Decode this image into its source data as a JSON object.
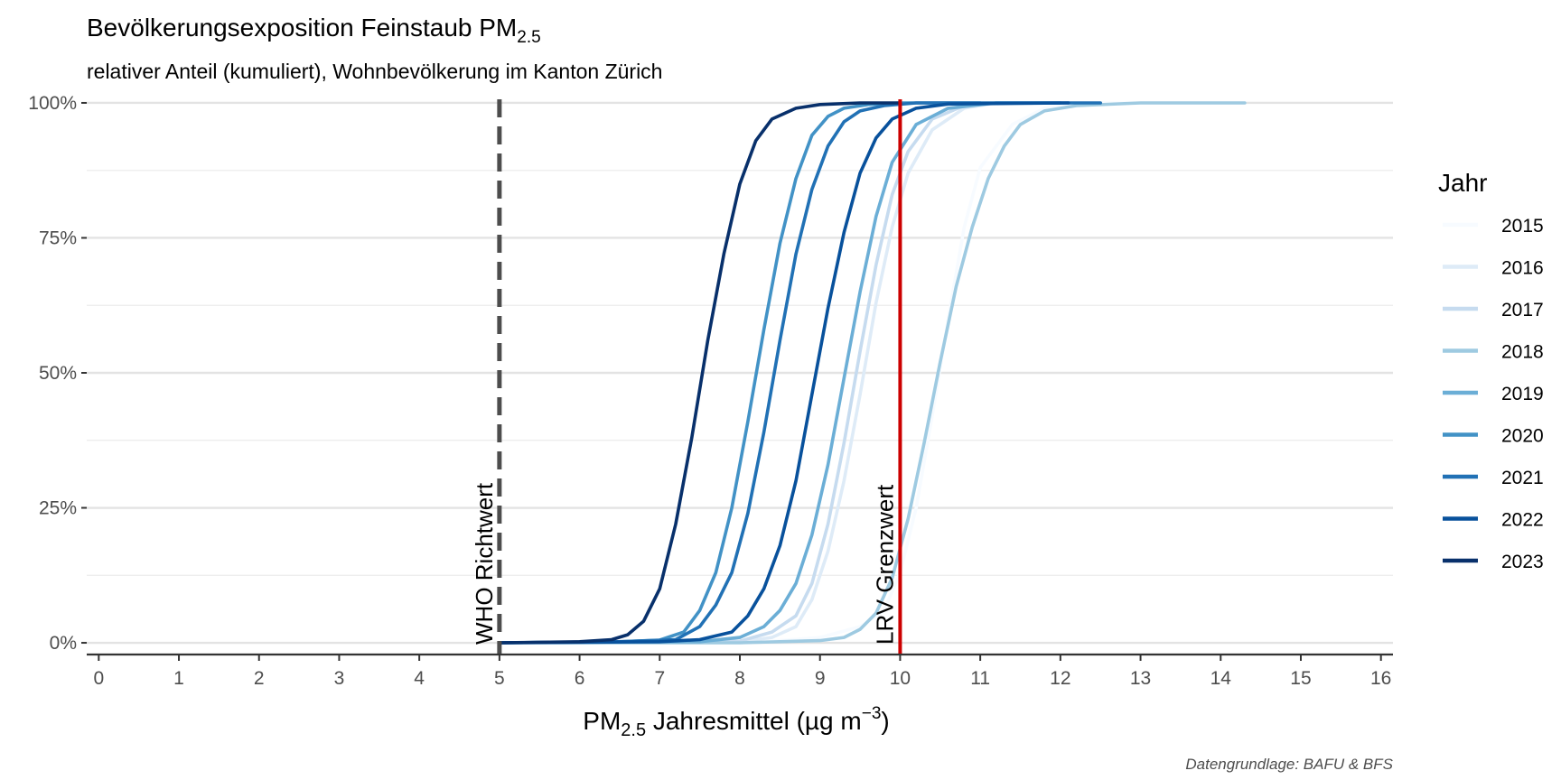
{
  "chart_data": {
    "type": "line",
    "title": {
      "main": "Bevölkerungsexposition Feinstaub PM",
      "sub": "2.5"
    },
    "subtitle": "relativer Anteil (kumuliert), Wohnbevölkerung im Kanton Zürich",
    "xlabel": {
      "pre": "PM",
      "sub": "2.5",
      "mid": " Jahresmittel (µg m",
      "sup": "−3",
      "post": ")"
    },
    "xlim": [
      -0.15,
      16.15
    ],
    "ylim": [
      -0.02,
      1.02
    ],
    "x_ticks": [
      0,
      1,
      2,
      3,
      4,
      5,
      6,
      7,
      8,
      9,
      10,
      11,
      12,
      13,
      14,
      15,
      16
    ],
    "y_ticks": [
      0,
      0.25,
      0.5,
      0.75,
      1.0
    ],
    "y_tick_labels": [
      "0%",
      "25%",
      "50%",
      "75%",
      "100%"
    ],
    "grid": true,
    "legend": {
      "title": "Jahr",
      "position": "right"
    },
    "reference_lines": [
      {
        "x": 5,
        "label": "WHO Richtwert",
        "style": "dashed",
        "color": "#4d4d4d"
      },
      {
        "x": 10,
        "label": "LRV Grenzwert",
        "style": "solid",
        "color": "#cc0000"
      }
    ],
    "series": [
      {
        "name": "2015",
        "color": "#f7fbff",
        "x": [
          5.0,
          8.0,
          8.5,
          9.0,
          9.5,
          9.8,
          10.0,
          10.2,
          10.4,
          10.6,
          10.8,
          11.0,
          11.4,
          11.8,
          12.5,
          14.3
        ],
        "y": [
          0.0,
          0.0,
          0.004,
          0.01,
          0.03,
          0.06,
          0.13,
          0.25,
          0.42,
          0.6,
          0.77,
          0.88,
          0.96,
          0.99,
          1.0,
          1.0
        ]
      },
      {
        "name": "2016",
        "color": "#deebf7",
        "x": [
          5.0,
          8.0,
          8.4,
          8.7,
          8.9,
          9.1,
          9.3,
          9.5,
          9.7,
          9.9,
          10.1,
          10.4,
          10.8,
          11.2,
          12.0
        ],
        "y": [
          0.0,
          0.002,
          0.01,
          0.03,
          0.08,
          0.17,
          0.3,
          0.46,
          0.63,
          0.77,
          0.87,
          0.95,
          0.99,
          1.0,
          1.0
        ]
      },
      {
        "name": "2017",
        "color": "#c6dbef",
        "x": [
          5.0,
          8.0,
          8.4,
          8.7,
          8.9,
          9.1,
          9.3,
          9.5,
          9.7,
          9.9,
          10.1,
          10.4,
          10.8,
          11.2,
          12.0
        ],
        "y": [
          0.0,
          0.003,
          0.02,
          0.05,
          0.11,
          0.22,
          0.37,
          0.54,
          0.7,
          0.83,
          0.91,
          0.97,
          0.995,
          1.0,
          1.0
        ]
      },
      {
        "name": "2018",
        "color": "#9ecae1",
        "x": [
          5.0,
          8.0,
          9.0,
          9.3,
          9.5,
          9.7,
          9.9,
          10.1,
          10.3,
          10.5,
          10.7,
          10.9,
          11.1,
          11.3,
          11.5,
          11.8,
          12.2,
          13.0,
          14.3
        ],
        "y": [
          0.0,
          0.0,
          0.004,
          0.01,
          0.025,
          0.055,
          0.12,
          0.23,
          0.37,
          0.52,
          0.66,
          0.77,
          0.86,
          0.92,
          0.96,
          0.985,
          0.995,
          1.0,
          1.0
        ]
      },
      {
        "name": "2019",
        "color": "#6baed6",
        "x": [
          5.0,
          7.5,
          8.0,
          8.3,
          8.5,
          8.7,
          8.9,
          9.1,
          9.3,
          9.5,
          9.7,
          9.9,
          10.2,
          10.6,
          11.2,
          12.0
        ],
        "y": [
          0.0,
          0.002,
          0.01,
          0.03,
          0.06,
          0.11,
          0.2,
          0.33,
          0.49,
          0.65,
          0.79,
          0.89,
          0.96,
          0.99,
          1.0,
          1.0
        ]
      },
      {
        "name": "2020",
        "color": "#4292c6",
        "x": [
          5.0,
          6.5,
          7.0,
          7.3,
          7.5,
          7.7,
          7.9,
          8.1,
          8.3,
          8.5,
          8.7,
          8.9,
          9.1,
          9.3,
          9.6,
          10.0,
          11.0
        ],
        "y": [
          0.0,
          0.002,
          0.005,
          0.02,
          0.06,
          0.13,
          0.25,
          0.41,
          0.58,
          0.74,
          0.86,
          0.94,
          0.975,
          0.99,
          0.997,
          1.0,
          1.0
        ]
      },
      {
        "name": "2021",
        "color": "#2171b5",
        "x": [
          5.0,
          6.5,
          7.2,
          7.5,
          7.7,
          7.9,
          8.1,
          8.3,
          8.5,
          8.7,
          8.9,
          9.1,
          9.3,
          9.5,
          9.8,
          10.2,
          12.5
        ],
        "y": [
          0.0,
          0.002,
          0.006,
          0.03,
          0.07,
          0.13,
          0.24,
          0.39,
          0.56,
          0.72,
          0.84,
          0.92,
          0.965,
          0.985,
          0.995,
          1.0,
          1.0
        ]
      },
      {
        "name": "2022",
        "color": "#08519c",
        "x": [
          5.0,
          7.0,
          7.5,
          7.9,
          8.1,
          8.3,
          8.5,
          8.7,
          8.9,
          9.1,
          9.3,
          9.5,
          9.7,
          9.9,
          10.2,
          10.6,
          12.1
        ],
        "y": [
          0.0,
          0.002,
          0.006,
          0.02,
          0.05,
          0.1,
          0.18,
          0.3,
          0.46,
          0.62,
          0.76,
          0.87,
          0.935,
          0.97,
          0.99,
          0.998,
          1.0
        ]
      },
      {
        "name": "2023",
        "color": "#08306b",
        "x": [
          5.0,
          6.0,
          6.4,
          6.6,
          6.8,
          7.0,
          7.2,
          7.4,
          7.6,
          7.8,
          8.0,
          8.2,
          8.4,
          8.7,
          9.0,
          9.5,
          10.0
        ],
        "y": [
          0.0,
          0.002,
          0.006,
          0.015,
          0.04,
          0.1,
          0.22,
          0.38,
          0.56,
          0.72,
          0.85,
          0.93,
          0.97,
          0.99,
          0.997,
          1.0,
          1.0
        ]
      }
    ]
  },
  "caption": "Datengrundlage: BAFU & BFS"
}
